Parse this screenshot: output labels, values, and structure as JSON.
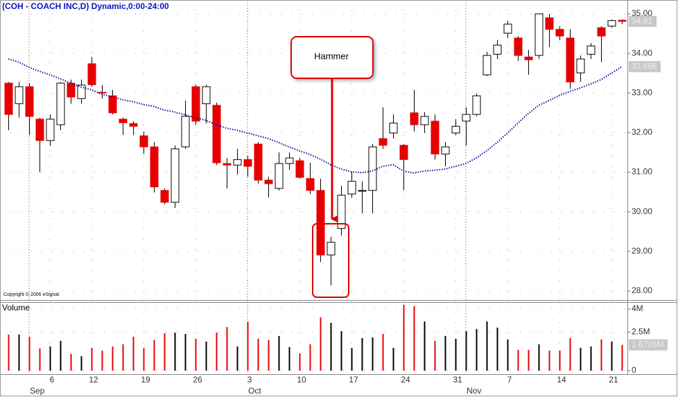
{
  "chart_data": [
    {
      "type": "candlestick",
      "title": "(COH - COACH INC,D) Dynamic,0:00-24:00",
      "copyright": "Copyright © 2006 eSignal.",
      "annotation": "Hammer",
      "categories": [
        null,
        null,
        null,
        null,
        "6",
        null,
        null,
        null,
        "12",
        null,
        null,
        null,
        null,
        "19",
        null,
        null,
        null,
        null,
        "26",
        null,
        null,
        null,
        null,
        "3",
        null,
        null,
        null,
        null,
        "10",
        null,
        null,
        null,
        null,
        "17",
        null,
        null,
        null,
        null,
        "24",
        null,
        null,
        null,
        null,
        "31",
        null,
        null,
        null,
        null,
        "7",
        null,
        null,
        null,
        null,
        "14",
        null,
        null,
        null,
        null,
        "21",
        null
      ],
      "month_labels": [
        null,
        null,
        "Sep",
        null,
        null,
        null,
        null,
        null,
        null,
        null,
        null,
        null,
        null,
        null,
        null,
        null,
        null,
        null,
        null,
        null,
        null,
        null,
        null,
        "Oct",
        null,
        null,
        null,
        null,
        null,
        null,
        null,
        null,
        null,
        null,
        null,
        null,
        null,
        null,
        null,
        null,
        null,
        null,
        null,
        null,
        "Nov",
        null,
        null,
        null,
        null,
        null,
        null,
        null,
        null,
        null,
        null,
        null,
        null,
        null,
        null,
        null
      ],
      "open": [
        33.25,
        32.73,
        33.16,
        32.34,
        31.8,
        32.2,
        33.25,
        32.86,
        33.74,
        33.02,
        32.93,
        32.34,
        32.23,
        31.92,
        31.64,
        30.54,
        30.24,
        31.64,
        33.16,
        32.73,
        32.69,
        31.22,
        31.18,
        31.32,
        31.71,
        30.8,
        30.59,
        31.22,
        31.29,
        30.84,
        30.54,
        28.91,
        29.58,
        30.45,
        30.52,
        30.54,
        31.85,
        31.99,
        31.68,
        32.5,
        32.2,
        32.29,
        31.46,
        31.99,
        32.29,
        32.46,
        33.46,
        33.98,
        34.51,
        34.39,
        33.91,
        33.95,
        34.9,
        34.61,
        34.39,
        33.51,
        33.98,
        34.65,
        34.69,
        34.84
      ],
      "high": [
        33.28,
        33.28,
        33.25,
        32.38,
        32.46,
        33.28,
        33.34,
        33.34,
        33.91,
        33.2,
        33.08,
        32.38,
        32.29,
        32.03,
        31.76,
        30.59,
        31.68,
        32.81,
        33.21,
        33.21,
        32.76,
        31.36,
        31.59,
        31.41,
        31.76,
        30.89,
        31.5,
        31.5,
        31.36,
        31.24,
        30.84,
        29.37,
        30.66,
        31.01,
        30.77,
        31.71,
        32.64,
        32.46,
        31.71,
        33.08,
        32.52,
        32.46,
        31.76,
        32.34,
        32.64,
        32.99,
        34.04,
        34.34,
        34.82,
        34.44,
        34.09,
        35.0,
        35.0,
        34.69,
        34.61,
        33.95,
        34.26,
        34.69,
        34.86,
        34.86
      ],
      "low": [
        32.06,
        32.38,
        31.94,
        31.0,
        31.67,
        32.06,
        32.73,
        32.73,
        33.16,
        32.86,
        32.46,
        31.94,
        31.94,
        31.46,
        30.49,
        30.19,
        30.1,
        31.59,
        32.2,
        32.23,
        31.18,
        30.59,
        30.94,
        30.89,
        30.71,
        30.36,
        30.54,
        31.06,
        30.84,
        30.45,
        28.73,
        28.14,
        29.4,
        30.36,
        29.96,
        29.96,
        31.59,
        31.85,
        30.54,
        32.03,
        31.99,
        31.32,
        31.15,
        31.94,
        31.67,
        32.41,
        33.43,
        33.86,
        34.39,
        33.81,
        33.46,
        33.86,
        34.16,
        34.34,
        33.11,
        33.28,
        33.86,
        33.78,
        34.65,
        34.74
      ],
      "close": [
        32.46,
        33.16,
        32.41,
        31.8,
        32.34,
        33.25,
        32.9,
        33.2,
        33.21,
        33.0,
        32.5,
        32.25,
        32.16,
        31.64,
        30.63,
        30.24,
        31.59,
        32.41,
        32.29,
        33.16,
        31.24,
        31.18,
        31.32,
        31.15,
        30.8,
        30.71,
        31.22,
        31.36,
        30.87,
        30.54,
        28.91,
        29.23,
        30.42,
        30.77,
        30.54,
        31.64,
        31.68,
        32.24,
        31.32,
        32.2,
        32.41,
        31.46,
        31.64,
        32.16,
        32.46,
        32.93,
        33.95,
        34.21,
        34.74,
        33.95,
        33.84,
        35.0,
        34.61,
        34.44,
        33.28,
        33.86,
        34.19,
        34.44,
        34.83,
        34.81
      ],
      "close_last_label": "34.81",
      "up_color": "#ffffff",
      "down_color": "#e60000",
      "moving_average": {
        "color": "#0a0aa0",
        "values": [
          33.86,
          33.78,
          33.65,
          33.55,
          33.46,
          33.36,
          33.25,
          33.15,
          33.08,
          32.97,
          32.9,
          32.83,
          32.78,
          32.71,
          32.66,
          32.57,
          32.52,
          32.45,
          32.38,
          32.31,
          32.2,
          32.11,
          32.06,
          31.99,
          31.92,
          31.85,
          31.75,
          31.64,
          31.54,
          31.45,
          31.33,
          31.19,
          31.08,
          31.01,
          30.99,
          31.03,
          31.15,
          31.19,
          31.03,
          30.98,
          31.03,
          31.05,
          31.08,
          31.15,
          31.22,
          31.36,
          31.54,
          31.75,
          31.99,
          32.24,
          32.48,
          32.69,
          32.81,
          32.94,
          33.04,
          33.13,
          33.23,
          33.34,
          33.5,
          33.666
        ],
        "last_label": "33.666"
      },
      "ylim": [
        27.79,
        35.35
      ],
      "yticks": [
        {
          "value": 35,
          "label": "35.00"
        },
        {
          "value": 34,
          "label": "34.00"
        },
        {
          "value": 33,
          "label": "33.00"
        },
        {
          "value": 32,
          "label": "32.00"
        },
        {
          "value": 31,
          "label": "31.00"
        },
        {
          "value": 30,
          "label": "30.00"
        },
        {
          "value": 29,
          "label": "29.00"
        },
        {
          "value": 28,
          "label": "28.00"
        }
      ],
      "grid": true
    },
    {
      "type": "volume",
      "title": "Volume",
      "values": [
        2340000,
        2340000,
        2200000,
        1440000,
        1570000,
        1930000,
        1080000,
        940000,
        1480000,
        1300000,
        1570000,
        1710000,
        2200000,
        1480000,
        1980000,
        2430000,
        2470000,
        2380000,
        2070000,
        1890000,
        2470000,
        2830000,
        1570000,
        3150000,
        2070000,
        1980000,
        2250000,
        1530000,
        1120000,
        1710000,
        3460000,
        3100000,
        2560000,
        1480000,
        2110000,
        2160000,
        2380000,
        1480000,
        4270000,
        4180000,
        3190000,
        1930000,
        2250000,
        2070000,
        2560000,
        2700000,
        3190000,
        2790000,
        2020000,
        1350000,
        1350000,
        1710000,
        1300000,
        1300000,
        2110000,
        1480000,
        1570000,
        2020000,
        1890000,
        1672800
      ],
      "last_label": "1.6728M",
      "up_color": "#000000",
      "down_color": "#e60000",
      "ylim": [
        0,
        4400000
      ],
      "yticks": [
        {
          "value": 4000000,
          "label": "4M"
        },
        {
          "value": 2500000,
          "label": "2.5M"
        },
        0
      ]
    }
  ]
}
